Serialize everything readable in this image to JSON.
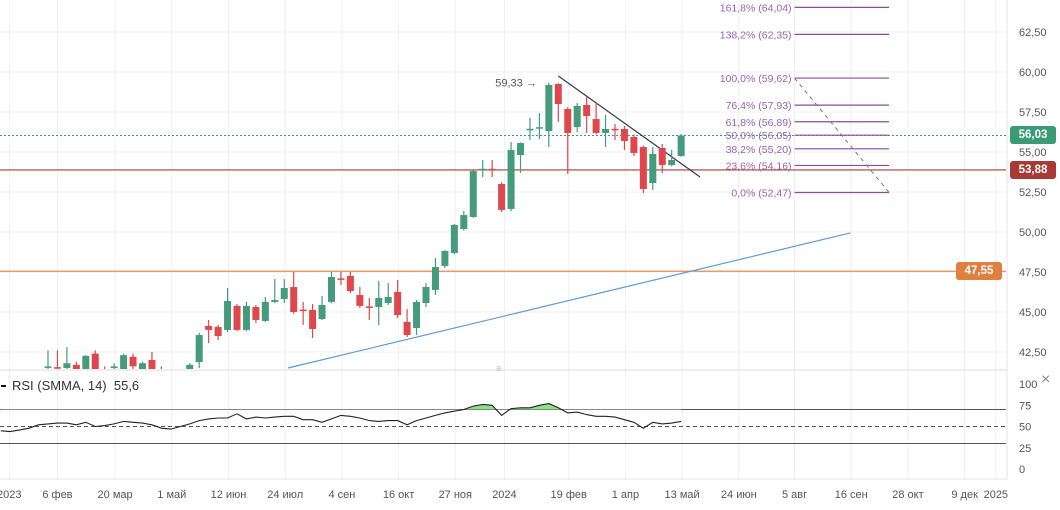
{
  "chart_data": {
    "type": "candlestick",
    "ylim": [
      41.5,
      64.5
    ],
    "price_axis": [
      {
        "label": "62,50",
        "value": 62.5
      },
      {
        "label": "60,00",
        "value": 60
      },
      {
        "label": "57,50",
        "value": 57.5
      },
      {
        "label": "55,00",
        "value": 55
      },
      {
        "label": "52,50",
        "value": 52.5
      },
      {
        "label": "50,00",
        "value": 50
      },
      {
        "label": "47,50",
        "value": 47.5
      },
      {
        "label": "45,00",
        "value": 45
      },
      {
        "label": "42,50",
        "value": 42.5
      }
    ],
    "x_ticks": [
      {
        "label": "2023",
        "index": -4.1
      },
      {
        "label": "6 фев",
        "index": 1
      },
      {
        "label": "20 мар",
        "index": 7.1
      },
      {
        "label": "1 май",
        "index": 13.1
      },
      {
        "label": "12 июн",
        "index": 19.1
      },
      {
        "label": "24 июл",
        "index": 25.1
      },
      {
        "label": "4 сен",
        "index": 31.1
      },
      {
        "label": "16 окт",
        "index": 37.1
      },
      {
        "label": "27 ноя",
        "index": 43.1
      },
      {
        "label": "2024",
        "index": 48.3
      },
      {
        "label": "19 фев",
        "index": 55.1
      },
      {
        "label": "1 апр",
        "index": 61.1
      },
      {
        "label": "13 май",
        "index": 67.1
      },
      {
        "label": "24 июн",
        "index": 73.1
      },
      {
        "label": "5 авг",
        "index": 79
      },
      {
        "label": "16 сен",
        "index": 85
      },
      {
        "label": "28 окт",
        "index": 91
      },
      {
        "label": "9 дек",
        "index": 97
      },
      {
        "label": "2025",
        "index": 100.3
      }
    ],
    "candles_ohlc": [
      [
        41.6,
        42.6,
        41.2,
        41.6
      ],
      [
        41.55,
        42.6,
        41.2,
        41.5
      ],
      [
        41.5,
        42.8,
        41.2,
        41.8
      ],
      [
        41.7,
        41.9,
        41.2,
        41.4
      ],
      [
        41.3,
        42.3,
        41.2,
        42.25
      ],
      [
        42.4,
        42.6,
        41.2,
        41.3
      ],
      [
        41.3,
        41.6,
        41.0,
        41.2
      ],
      [
        41.5,
        41.8,
        41.2,
        41.6
      ],
      [
        41.3,
        42.4,
        41.2,
        42.3
      ],
      [
        42.2,
        42.4,
        41.3,
        41.6
      ],
      [
        41.3,
        41.9,
        41.2,
        41.8
      ],
      [
        42.0,
        42.5,
        41.2,
        41.3
      ],
      [
        41.4,
        41.6,
        41.0,
        41.3
      ],
      [
        41.0,
        41.3,
        40.6,
        41.2
      ],
      [
        41.1,
        41.3,
        40.7,
        40.9
      ],
      [
        41.2,
        41.8,
        41.0,
        41.7
      ],
      [
        41.87,
        43.69,
        41.5,
        43.56
      ],
      [
        44.13,
        44.5,
        43.06,
        43.88
      ],
      [
        44.06,
        44.19,
        43.25,
        43.5
      ],
      [
        43.88,
        46.5,
        43.75,
        45.69
      ],
      [
        45.38,
        45.5,
        43.81,
        43.88
      ],
      [
        43.88,
        45.63,
        43.81,
        45.38
      ],
      [
        45.31,
        45.44,
        44.31,
        44.5
      ],
      [
        44.44,
        45.94,
        44.38,
        45.63
      ],
      [
        45.63,
        47.06,
        45.56,
        45.75
      ],
      [
        45.81,
        47.06,
        45.56,
        46.5
      ],
      [
        46.56,
        47.5,
        44.88,
        45.0
      ],
      [
        45.15,
        45.63,
        44.19,
        45.1
      ],
      [
        45.13,
        45.5,
        43.38,
        43.94
      ],
      [
        44.56,
        46.0,
        44.5,
        45.44
      ],
      [
        45.63,
        47.5,
        45.56,
        47.19
      ],
      [
        47.1,
        47.5,
        46.69,
        47.05
      ],
      [
        47.25,
        47.5,
        46.19,
        46.31
      ],
      [
        46.06,
        46.56,
        45.25,
        45.38
      ],
      [
        45.35,
        45.88,
        44.5,
        45.3
      ],
      [
        45.31,
        46.94,
        44.19,
        45.88
      ],
      [
        45.56,
        46.81,
        45.44,
        45.94
      ],
      [
        46.25,
        47.0,
        44.63,
        44.81
      ],
      [
        44.38,
        45.19,
        43.44,
        43.56
      ],
      [
        44.0,
        45.75,
        43.56,
        45.63
      ],
      [
        45.56,
        46.81,
        45.31,
        46.56
      ],
      [
        46.38,
        48.38,
        46.06,
        47.81
      ],
      [
        47.88,
        48.88,
        47.75,
        48.81
      ],
      [
        48.69,
        50.5,
        48.6,
        50.44
      ],
      [
        50.19,
        51.31,
        50.1,
        51.06
      ],
      [
        50.94,
        53.85,
        50.88,
        53.81
      ],
      [
        53.9,
        54.5,
        53.44,
        53.95
      ],
      [
        53.95,
        54.5,
        53.44,
        53.9
      ],
      [
        53.0,
        53.1,
        51.25,
        51.38
      ],
      [
        51.44,
        55.63,
        51.3,
        55.13
      ],
      [
        54.81,
        55.6,
        53.69,
        55.56
      ],
      [
        56.4,
        57.13,
        55.75,
        56.45
      ],
      [
        56.5,
        57.44,
        55.81,
        56.55
      ],
      [
        56.31,
        59.33,
        55.31,
        59.19
      ],
      [
        59.25,
        59.3,
        56.88,
        58.0
      ],
      [
        57.69,
        57.8,
        53.63,
        56.19
      ],
      [
        56.56,
        58.06,
        56.25,
        57.88
      ],
      [
        57.94,
        58.44,
        56.19,
        57.25
      ],
      [
        57.06,
        58.06,
        56.1,
        56.19
      ],
      [
        56.19,
        57.31,
        55.31,
        56.44
      ],
      [
        56.45,
        56.75,
        55.75,
        56.4
      ],
      [
        56.44,
        56.63,
        55.13,
        55.69
      ],
      [
        55.94,
        56.1,
        54.75,
        54.94
      ],
      [
        55.31,
        55.4,
        52.44,
        52.69
      ],
      [
        53.06,
        55.31,
        52.63,
        54.88
      ],
      [
        55.25,
        55.5,
        53.69,
        54.19
      ],
      [
        54.19,
        55.13,
        54.1,
        54.5
      ],
      [
        54.75,
        56.13,
        54.7,
        56.03
      ]
    ],
    "colors": {
      "up": "#449c7d",
      "down": "#e0474c",
      "last": "#3a9b77",
      "support_red": "#a83a36",
      "support_orange": "#e08040",
      "trend_blue": "#5b9bd5",
      "trend_dark": "#2e3a55",
      "fib": "#8e4a9e"
    },
    "last_price": {
      "label": "56,03",
      "value": 56.03
    },
    "levels": [
      {
        "label": "53,88",
        "value": 53.88,
        "kind": "red"
      },
      {
        "label": "47,55",
        "value": 47.55,
        "kind": "orange"
      }
    ],
    "high_annotation": {
      "label": "59,33",
      "arrow": "→",
      "index": 53,
      "value": 59.33
    },
    "trend_down": {
      "from": {
        "index": 54,
        "value": 59.75
      },
      "to": {
        "index": 69,
        "value": 53.44
      }
    },
    "trend_up": {
      "from": {
        "index": 25.4,
        "value": 41.5
      },
      "to": {
        "index": 84.9,
        "value": 49.94
      }
    },
    "fibonacci": {
      "from_index": 79,
      "to_index": 89,
      "levels": [
        {
          "label": "161,8% (64,04)",
          "value": 64.04
        },
        {
          "label": "138,2% (62,35)",
          "value": 62.35
        },
        {
          "label": "100,0% (59,62)",
          "value": 59.62
        },
        {
          "label": "76,4% (57,93)",
          "value": 57.93
        },
        {
          "label": "61,8% (56,89)",
          "value": 56.89
        },
        {
          "label": "50,0% (56,05)",
          "value": 56.05
        },
        {
          "label": "38,2% (55,20)",
          "value": 55.2
        },
        {
          "label": "23,6% (54,16)",
          "value": 54.16
        },
        {
          "label": "0,0% (52,47)",
          "value": 52.47
        }
      ]
    },
    "rsi": {
      "title": "RSI (SMMA, 14)",
      "value_label": "55,6",
      "start_index": -5,
      "overbought": 70,
      "oversold": 30,
      "mid": 50,
      "axis": [
        {
          "label": "100",
          "value": 100
        },
        {
          "label": "75",
          "value": 75
        },
        {
          "label": "50",
          "value": 50
        },
        {
          "label": "25",
          "value": 25
        },
        {
          "label": "0",
          "value": 0
        }
      ],
      "values": [
        45,
        44,
        46,
        48,
        52,
        53,
        54,
        54,
        52,
        55,
        50,
        51,
        53,
        56,
        55,
        54,
        52,
        48,
        47,
        50,
        53,
        57,
        59,
        60,
        60,
        65,
        59,
        61,
        60,
        61,
        62,
        62,
        58,
        58,
        55,
        59,
        63,
        62,
        60,
        57,
        56,
        57,
        57,
        52,
        57,
        60,
        63,
        66,
        68,
        70,
        74,
        76,
        75,
        63,
        71,
        72,
        72,
        75,
        77,
        72,
        66,
        67,
        64,
        62,
        62,
        61,
        58,
        55,
        48,
        55,
        53,
        54,
        56
      ]
    }
  },
  "ui": {
    "close_icon": "×",
    "pane_handle": "≡"
  }
}
